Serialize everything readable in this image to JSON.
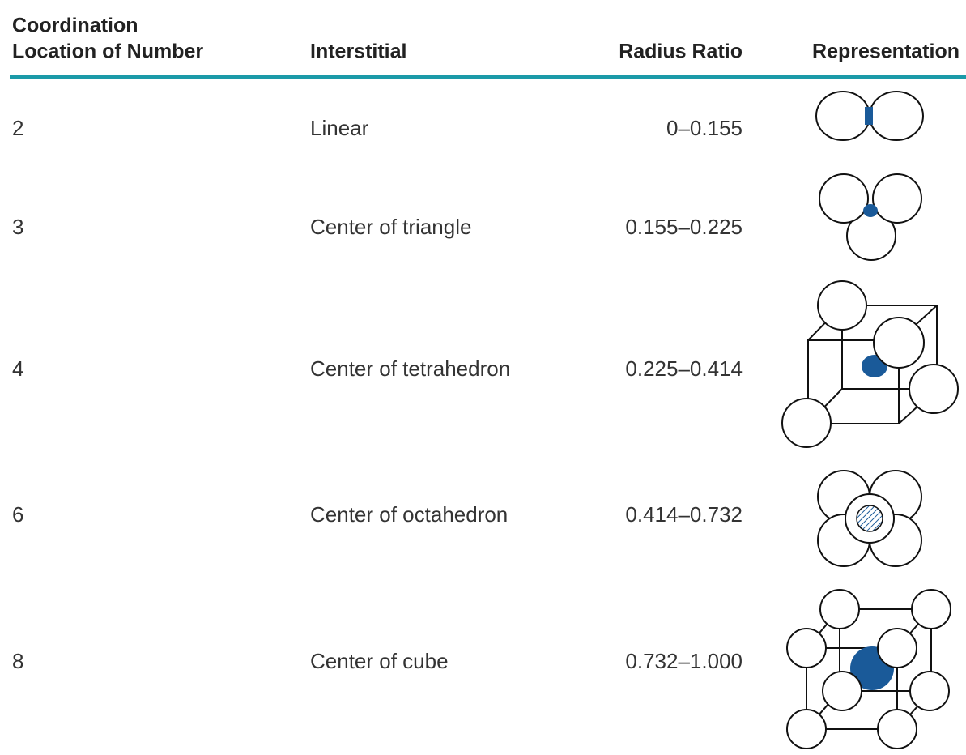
{
  "table": {
    "header": [
      [
        "Coordination",
        "Location of Number"
      ],
      "Interstitial",
      "Radius Ratio",
      "Representation"
    ],
    "rows": [
      [
        2,
        "Linear",
        "0–0.155"
      ],
      [
        3,
        "Center of triangle",
        "0.155–0.225"
      ],
      [
        4,
        "Center of tetrahedron",
        "0.225–0.414"
      ],
      [
        6,
        "Center of octahedron",
        "0.414–0.732"
      ],
      [
        8,
        "Center of cube",
        "0.732–1.000"
      ]
    ]
  }
}
